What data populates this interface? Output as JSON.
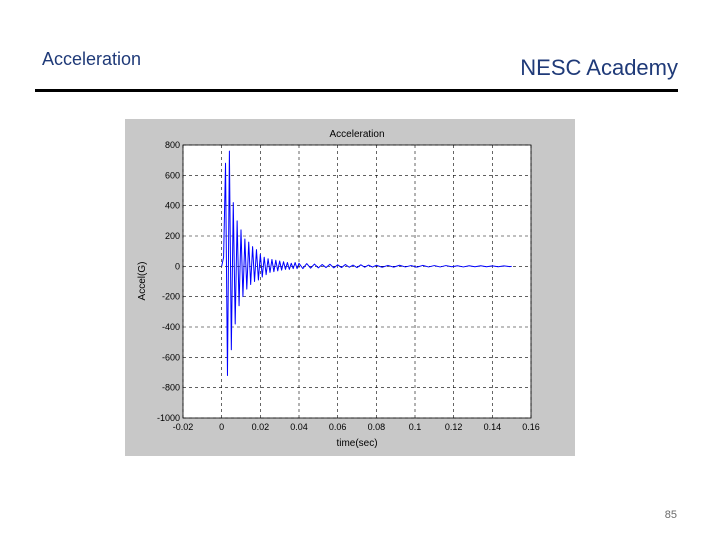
{
  "header": {
    "section_title": "Acceleration",
    "brand": "NESC Academy"
  },
  "footer": {
    "page_number": "85"
  },
  "colors": {
    "title_text": "#1f3a78",
    "series_line": "#0000ff",
    "figure_bg": "#c8c8c8",
    "plot_bg": "#ffffff"
  },
  "chart_data": {
    "type": "line",
    "title": "Acceleration",
    "xlabel": "time(sec)",
    "ylabel": "Accel(G)",
    "xlim": [
      -0.02,
      0.16
    ],
    "ylim": [
      -1000,
      800
    ],
    "xticks": [
      -0.02,
      0,
      0.02,
      0.04,
      0.06,
      0.08,
      0.1,
      0.12,
      0.14,
      0.16
    ],
    "xtick_labels": [
      "-0.02",
      "0",
      "0.02",
      "0.04",
      "0.06",
      "0.08",
      "0.1",
      "0.12",
      "0.14",
      "0.16"
    ],
    "yticks": [
      800,
      600,
      400,
      200,
      0,
      -200,
      -400,
      -600,
      -800,
      -1000
    ],
    "ytick_labels": [
      "800",
      "600",
      "400",
      "200",
      "0",
      "-200",
      "-400",
      "-600",
      "-800",
      "-1000"
    ],
    "grid": true,
    "series": [
      {
        "color": "#0000ff",
        "x": [
          0,
          0.001,
          0.002,
          0.003,
          0.004,
          0.005,
          0.006,
          0.007,
          0.008,
          0.009,
          0.01,
          0.011,
          0.012,
          0.013,
          0.014,
          0.015,
          0.016,
          0.017,
          0.018,
          0.019,
          0.02,
          0.021,
          0.022,
          0.023,
          0.024,
          0.025,
          0.026,
          0.027,
          0.028,
          0.029,
          0.03,
          0.031,
          0.032,
          0.033,
          0.034,
          0.035,
          0.036,
          0.037,
          0.038,
          0.039,
          0.04,
          0.042,
          0.044,
          0.046,
          0.048,
          0.05,
          0.052,
          0.054,
          0.056,
          0.058,
          0.06,
          0.062,
          0.064,
          0.066,
          0.068,
          0.07,
          0.072,
          0.074,
          0.076,
          0.078,
          0.08,
          0.083,
          0.086,
          0.089,
          0.092,
          0.095,
          0.098,
          0.101,
          0.104,
          0.107,
          0.11,
          0.113,
          0.116,
          0.119,
          0.122,
          0.125,
          0.128,
          0.131,
          0.134,
          0.137,
          0.14,
          0.143,
          0.146,
          0.149,
          0.15
        ],
        "y": [
          0,
          60,
          680,
          -720,
          760,
          -550,
          420,
          -380,
          300,
          -260,
          240,
          -200,
          180,
          -150,
          160,
          -120,
          130,
          -100,
          110,
          -90,
          80,
          -70,
          60,
          -55,
          50,
          -40,
          45,
          -35,
          40,
          -30,
          35,
          -25,
          30,
          -20,
          25,
          -20,
          20,
          -15,
          25,
          -15,
          20,
          -15,
          18,
          -12,
          15,
          -10,
          12,
          -8,
          14,
          -10,
          10,
          -8,
          12,
          -6,
          8,
          -8,
          10,
          -6,
          8,
          -5,
          7,
          -6,
          6,
          -5,
          7,
          -4,
          5,
          -5,
          6,
          -4,
          5,
          -4,
          5,
          -3,
          4,
          -4,
          4,
          -3,
          4,
          -3,
          3,
          -3,
          3,
          -2,
          0
        ]
      }
    ]
  }
}
